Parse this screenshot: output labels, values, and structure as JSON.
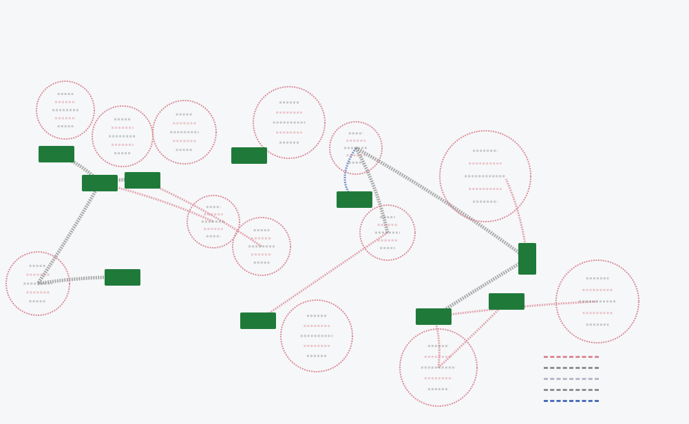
{
  "header": {
    "left_text": "",
    "right_text": "",
    "title_lines": [
      "",
      ""
    ]
  },
  "colors": {
    "background": "#f6f7f8",
    "circle_stroke": "#d98a98",
    "inner_text": "#8a8a8a",
    "box_fill": "#1f7a3a",
    "edge_gray": "#8f8f8f",
    "edge_pink": "#d98a98",
    "edge_blue": "#4a6fb8"
  },
  "nodes": [
    {
      "id": "c1",
      "shape": "circle",
      "label": ""
    },
    {
      "id": "c2",
      "shape": "circle",
      "label": ""
    },
    {
      "id": "c3",
      "shape": "circle",
      "label": ""
    },
    {
      "id": "c4",
      "shape": "circle",
      "label": ""
    },
    {
      "id": "c5",
      "shape": "circle",
      "label": ""
    },
    {
      "id": "c6",
      "shape": "circle",
      "label": ""
    },
    {
      "id": "c7",
      "shape": "circle",
      "label": ""
    },
    {
      "id": "c8",
      "shape": "circle",
      "label": ""
    },
    {
      "id": "c9",
      "shape": "circle",
      "label": ""
    },
    {
      "id": "c10",
      "shape": "circle",
      "label": ""
    },
    {
      "id": "c11",
      "shape": "circle",
      "label": ""
    },
    {
      "id": "c12",
      "shape": "circle",
      "label": ""
    },
    {
      "id": "c13",
      "shape": "circle",
      "label": ""
    },
    {
      "id": "c14",
      "shape": "circle",
      "label": ""
    },
    {
      "id": "b1",
      "shape": "box",
      "label": ""
    },
    {
      "id": "b2",
      "shape": "box",
      "label": ""
    },
    {
      "id": "b3",
      "shape": "box",
      "label": ""
    },
    {
      "id": "b4",
      "shape": "box",
      "label": ""
    },
    {
      "id": "b5",
      "shape": "box",
      "label": ""
    },
    {
      "id": "b6",
      "shape": "box",
      "label": ""
    },
    {
      "id": "b7",
      "shape": "box",
      "label": ""
    },
    {
      "id": "b8",
      "shape": "box",
      "label": ""
    },
    {
      "id": "b9",
      "shape": "box",
      "label": ""
    },
    {
      "id": "b10",
      "shape": "box",
      "label": ""
    }
  ],
  "edges": [
    {
      "from": "b1",
      "to": "b2",
      "kind": "gray"
    },
    {
      "from": "b2",
      "to": "c5",
      "kind": "pink"
    },
    {
      "from": "b2",
      "to": "c4",
      "kind": "gray"
    },
    {
      "from": "b2",
      "to": "b3",
      "kind": "gray"
    },
    {
      "from": "c4",
      "to": "b4",
      "kind": "gray"
    },
    {
      "from": "b3",
      "to": "c6",
      "kind": "pink"
    },
    {
      "from": "b6",
      "to": "c8",
      "kind": "blue"
    },
    {
      "from": "c9",
      "to": "c8",
      "kind": "gray"
    },
    {
      "from": "c9",
      "to": "b7",
      "kind": "pink"
    },
    {
      "from": "c8",
      "to": "b10",
      "kind": "gray"
    },
    {
      "from": "b10",
      "to": "b8",
      "kind": "gray"
    },
    {
      "from": "b8",
      "to": "c13",
      "kind": "pink"
    },
    {
      "from": "b8",
      "to": "c12",
      "kind": "pink"
    },
    {
      "from": "b10",
      "to": "c14",
      "kind": "pink"
    },
    {
      "from": "b9",
      "to": "c12",
      "kind": "pink"
    }
  ],
  "legend": {
    "title": "",
    "items": [
      {
        "label": "",
        "color": "#d98a98"
      },
      {
        "label": "",
        "color": "#8f8f8f"
      },
      {
        "label": "",
        "color": "#b8b8c8"
      },
      {
        "label": "",
        "color": "#8f8f8f"
      },
      {
        "label": "",
        "color": "#4a6fb8"
      }
    ]
  }
}
